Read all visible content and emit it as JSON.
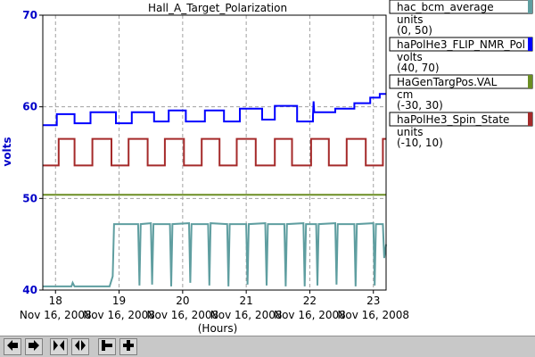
{
  "chart_data": {
    "type": "line",
    "title": "Hall_A_Target_Polarization",
    "ylabel": "volts",
    "xlabel": "(Hours)",
    "ylim": [
      40,
      70
    ],
    "xlim": [
      17.8,
      23.2
    ],
    "yticks": [
      40,
      50,
      60,
      70
    ],
    "xticks": [
      {
        "hour": 18,
        "label": "18",
        "date": "Nov 16, 2008"
      },
      {
        "hour": 19,
        "label": "19",
        "date": "Nov 16, 2008"
      },
      {
        "hour": 20,
        "label": "20",
        "date": "Nov 16, 2008"
      },
      {
        "hour": 21,
        "label": "21",
        "date": "Nov 16, 2008"
      },
      {
        "hour": 22,
        "label": "22",
        "date": "Nov 16, 2008"
      },
      {
        "hour": 23,
        "label": "23",
        "date": "Nov 16, 2008"
      }
    ],
    "grid": true,
    "legend_position": "right",
    "series": [
      {
        "name": "hac_bcm_average",
        "units": "units",
        "range": "(0, 50)",
        "color": "#5f9ea0",
        "points": [
          [
            17.8,
            40.4
          ],
          [
            18.25,
            40.4
          ],
          [
            18.27,
            40.8
          ],
          [
            18.3,
            40.4
          ],
          [
            18.85,
            40.4
          ],
          [
            18.9,
            41.5
          ],
          [
            18.92,
            47.2
          ],
          [
            19.3,
            47.2
          ],
          [
            19.32,
            40.5
          ],
          [
            19.34,
            47.2
          ],
          [
            19.5,
            47.3
          ],
          [
            19.52,
            40.6
          ],
          [
            19.54,
            47.2
          ],
          [
            19.8,
            47.2
          ],
          [
            19.82,
            40.4
          ],
          [
            19.84,
            47.2
          ],
          [
            20.1,
            47.3
          ],
          [
            20.12,
            40.8
          ],
          [
            20.14,
            47.2
          ],
          [
            20.4,
            47.2
          ],
          [
            20.42,
            40.5
          ],
          [
            20.44,
            47.3
          ],
          [
            20.7,
            47.2
          ],
          [
            20.72,
            40.4
          ],
          [
            20.74,
            47.2
          ],
          [
            21.0,
            47.2
          ],
          [
            21.02,
            40.6
          ],
          [
            21.04,
            47.2
          ],
          [
            21.3,
            47.3
          ],
          [
            21.32,
            40.5
          ],
          [
            21.34,
            47.2
          ],
          [
            21.6,
            47.2
          ],
          [
            21.62,
            40.4
          ],
          [
            21.64,
            47.2
          ],
          [
            21.9,
            47.3
          ],
          [
            21.92,
            40.4
          ],
          [
            21.94,
            47.2
          ],
          [
            22.1,
            47.2
          ],
          [
            22.12,
            40.5
          ],
          [
            22.14,
            47.2
          ],
          [
            22.4,
            47.3
          ],
          [
            22.42,
            40.6
          ],
          [
            22.44,
            47.2
          ],
          [
            22.7,
            47.2
          ],
          [
            22.72,
            40.4
          ],
          [
            22.74,
            47.2
          ],
          [
            23.0,
            47.3
          ],
          [
            23.02,
            40.5
          ],
          [
            23.04,
            47.2
          ],
          [
            23.15,
            47.2
          ],
          [
            23.17,
            43.5
          ],
          [
            23.2,
            45.0
          ]
        ]
      },
      {
        "name": "haPolHe3_FLIP_NMR_Pol",
        "units": "volts",
        "range": "(40, 70)",
        "color": "#0000ff",
        "points": [
          [
            17.8,
            58.0
          ],
          [
            18.02,
            58.0
          ],
          [
            18.02,
            59.2
          ],
          [
            18.3,
            59.2
          ],
          [
            18.3,
            58.2
          ],
          [
            18.55,
            58.2
          ],
          [
            18.55,
            59.4
          ],
          [
            18.95,
            59.4
          ],
          [
            18.95,
            58.2
          ],
          [
            19.2,
            58.2
          ],
          [
            19.2,
            59.4
          ],
          [
            19.55,
            59.4
          ],
          [
            19.55,
            58.4
          ],
          [
            19.78,
            58.4
          ],
          [
            19.78,
            59.6
          ],
          [
            20.05,
            59.6
          ],
          [
            20.05,
            58.4
          ],
          [
            20.35,
            58.4
          ],
          [
            20.35,
            59.6
          ],
          [
            20.65,
            59.6
          ],
          [
            20.65,
            58.4
          ],
          [
            20.9,
            58.4
          ],
          [
            20.9,
            59.8
          ],
          [
            21.25,
            59.8
          ],
          [
            21.25,
            58.6
          ],
          [
            21.45,
            58.6
          ],
          [
            21.45,
            60.1
          ],
          [
            21.8,
            60.1
          ],
          [
            21.8,
            58.4
          ],
          [
            22.05,
            58.4
          ],
          [
            22.05,
            59.0
          ],
          [
            22.06,
            60.6
          ],
          [
            22.07,
            59.4
          ],
          [
            22.1,
            59.4
          ],
          [
            22.4,
            59.4
          ],
          [
            22.4,
            59.8
          ],
          [
            22.7,
            59.8
          ],
          [
            22.7,
            60.4
          ],
          [
            22.95,
            60.4
          ],
          [
            22.95,
            61.0
          ],
          [
            23.1,
            61.0
          ],
          [
            23.1,
            61.4
          ],
          [
            23.2,
            61.4
          ]
        ]
      },
      {
        "name": "HaGenTargPos.VAL",
        "units": "cm",
        "range": "(-30, 30)",
        "color": "#6b8e23",
        "points": [
          [
            17.8,
            50.4
          ],
          [
            23.2,
            50.4
          ]
        ]
      },
      {
        "name": "haPolHe3_Spin_State",
        "units": "units",
        "range": "(-10, 10)",
        "color": "#a52a2a",
        "points": [
          [
            17.8,
            53.6
          ],
          [
            18.05,
            53.6
          ],
          [
            18.05,
            56.5
          ],
          [
            18.3,
            56.5
          ],
          [
            18.3,
            53.6
          ],
          [
            18.58,
            53.6
          ],
          [
            18.58,
            56.5
          ],
          [
            18.88,
            56.5
          ],
          [
            18.88,
            53.6
          ],
          [
            19.15,
            53.6
          ],
          [
            19.15,
            56.5
          ],
          [
            19.45,
            56.5
          ],
          [
            19.45,
            53.6
          ],
          [
            19.72,
            53.6
          ],
          [
            19.72,
            56.5
          ],
          [
            20.02,
            56.5
          ],
          [
            20.02,
            53.6
          ],
          [
            20.3,
            53.6
          ],
          [
            20.3,
            56.5
          ],
          [
            20.58,
            56.5
          ],
          [
            20.58,
            53.6
          ],
          [
            20.85,
            53.6
          ],
          [
            20.85,
            56.5
          ],
          [
            21.15,
            56.5
          ],
          [
            21.15,
            53.6
          ],
          [
            21.45,
            53.6
          ],
          [
            21.45,
            56.5
          ],
          [
            21.72,
            56.5
          ],
          [
            21.72,
            53.6
          ],
          [
            22.02,
            53.6
          ],
          [
            22.02,
            56.5
          ],
          [
            22.3,
            56.5
          ],
          [
            22.3,
            53.6
          ],
          [
            22.58,
            53.6
          ],
          [
            22.58,
            56.5
          ],
          [
            22.88,
            56.5
          ],
          [
            22.88,
            53.6
          ],
          [
            23.15,
            53.6
          ],
          [
            23.15,
            56.5
          ],
          [
            23.2,
            56.5
          ]
        ]
      }
    ]
  },
  "toolbar": {
    "buttons": [
      {
        "name": "scroll-left-button",
        "icon": "arrow-left-icon"
      },
      {
        "name": "scroll-right-button",
        "icon": "arrow-right-icon"
      },
      {
        "name": "zoom-in-time-button",
        "icon": "arrows-inward-icon"
      },
      {
        "name": "zoom-out-time-button",
        "icon": "arrows-outward-icon"
      },
      {
        "name": "zoom-out-value-button",
        "icon": "minus-icon"
      },
      {
        "name": "zoom-in-value-button",
        "icon": "plus-icon"
      }
    ]
  }
}
